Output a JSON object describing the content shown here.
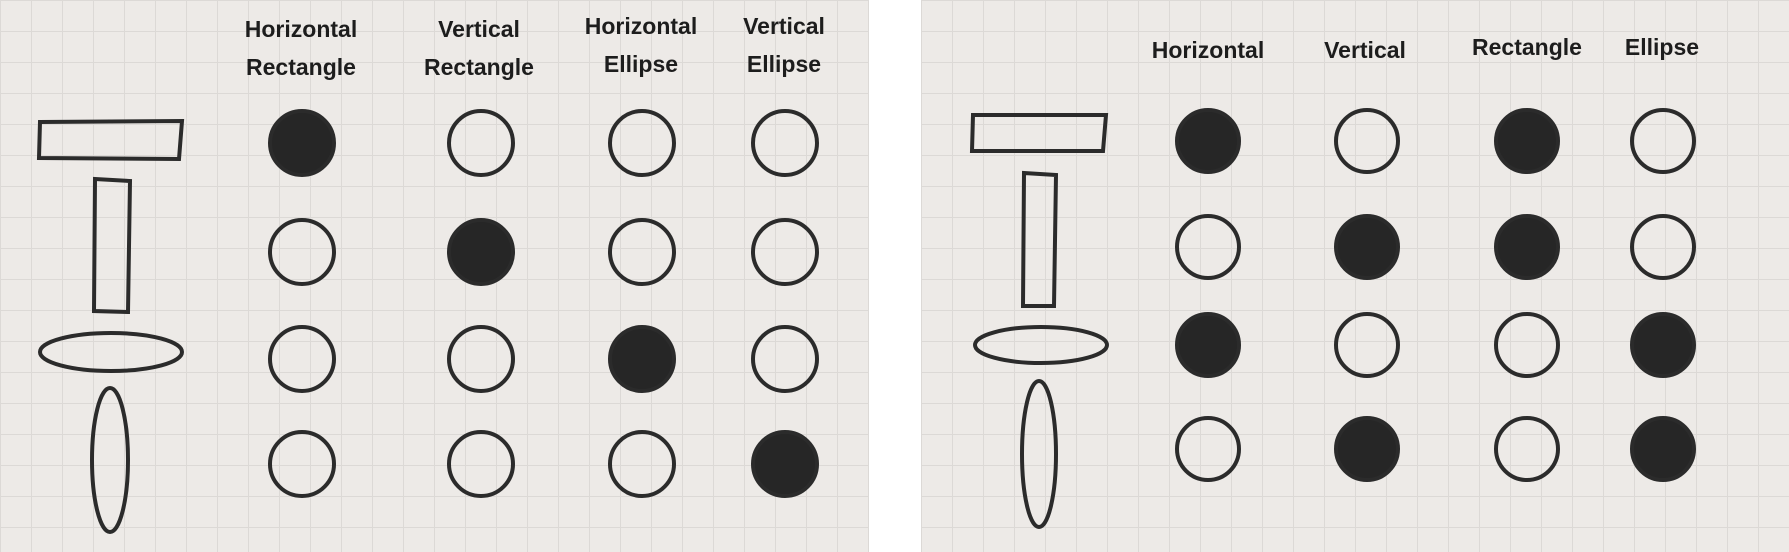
{
  "colors": {
    "background": "#edeae7",
    "grid": "#dcd9d6",
    "stroke": "#2b2b2b",
    "filled": "#262626",
    "empty": "none"
  },
  "left_panel": {
    "headers": [
      {
        "line1": "Horizontal",
        "line2": "Rectangle"
      },
      {
        "line1": "Vertical",
        "line2": "Rectangle"
      },
      {
        "line1": "Horizontal",
        "line2": "Ellipse"
      },
      {
        "line1": "Vertical",
        "line2": "Ellipse"
      }
    ],
    "rows": [
      {
        "shape": "horizontal-rectangle",
        "filled": [
          true,
          false,
          false,
          false
        ]
      },
      {
        "shape": "vertical-rectangle",
        "filled": [
          false,
          true,
          false,
          false
        ]
      },
      {
        "shape": "horizontal-ellipse",
        "filled": [
          false,
          false,
          true,
          false
        ]
      },
      {
        "shape": "vertical-ellipse",
        "filled": [
          false,
          false,
          false,
          true
        ]
      }
    ]
  },
  "right_panel": {
    "headers": [
      {
        "line1": "Horizontal"
      },
      {
        "line1": "Vertical"
      },
      {
        "line1": "Rectangle"
      },
      {
        "line1": "Ellipse"
      }
    ],
    "rows": [
      {
        "shape": "horizontal-rectangle",
        "filled": [
          true,
          false,
          true,
          false
        ]
      },
      {
        "shape": "vertical-rectangle",
        "filled": [
          false,
          true,
          true,
          false
        ]
      },
      {
        "shape": "horizontal-ellipse",
        "filled": [
          true,
          false,
          false,
          true
        ]
      },
      {
        "shape": "vertical-ellipse",
        "filled": [
          false,
          true,
          false,
          true
        ]
      }
    ]
  }
}
